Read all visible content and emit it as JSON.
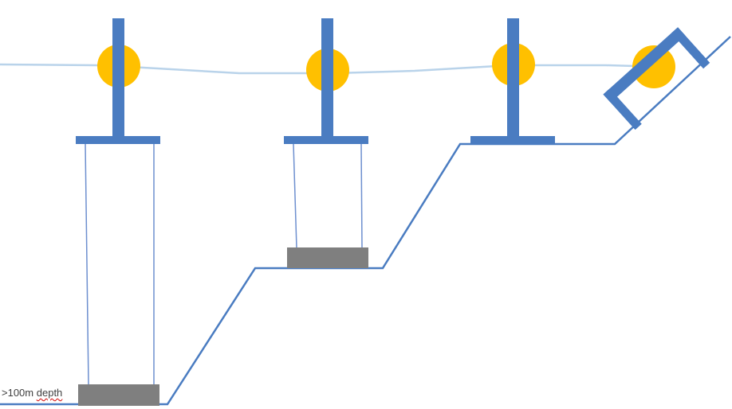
{
  "depth_label": {
    "prefix": ">100m",
    "word": "depth"
  },
  "colors": {
    "structure": "#4a7cc1",
    "seabed_line": "#4a7cc1",
    "water_surface": "#b9d3ea",
    "float": "#ffc000",
    "anchor_block": "#7f7f7f",
    "mooring_line": "#6d8fcf"
  },
  "icons": {
    "float": "yellow-float-icon",
    "anchor": "anchor-block-icon"
  }
}
